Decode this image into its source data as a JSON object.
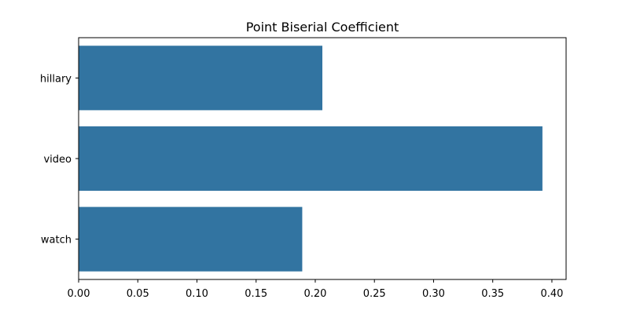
{
  "chart_data": {
    "type": "bar",
    "orientation": "horizontal",
    "title": "Point Biserial Coefficient",
    "xlabel": "",
    "ylabel": "",
    "categories": [
      "hillary",
      "video",
      "watch"
    ],
    "values": [
      0.206,
      0.392,
      0.189
    ],
    "xlim": [
      0.0,
      0.412
    ],
    "xticks": [
      0.0,
      0.05,
      0.1,
      0.15,
      0.2,
      0.25,
      0.3,
      0.35,
      0.4
    ],
    "xtick_labels": [
      "0.00",
      "0.05",
      "0.10",
      "0.15",
      "0.20",
      "0.25",
      "0.30",
      "0.35",
      "0.40"
    ],
    "grid": false,
    "legend": "none",
    "bar_color": "#3274a1"
  }
}
